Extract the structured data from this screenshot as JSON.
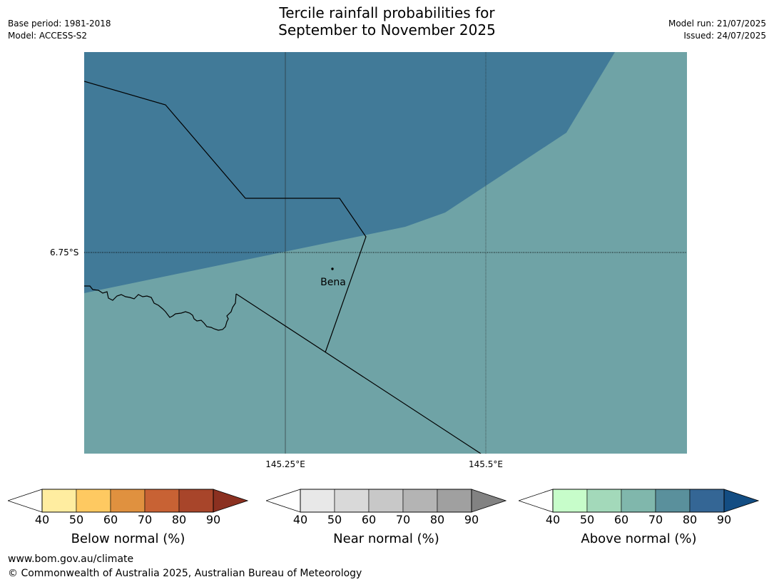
{
  "header": {
    "base_period": "Base period: 1981-2018",
    "model": "Model: ACCESS-S2",
    "title_line1": "Tercile rainfall probabilities for",
    "title_line2": "September to November 2025",
    "model_run": "Model run: 21/07/2025",
    "issued": "Issued: 24/07/2025"
  },
  "map": {
    "lat_label": "6.75°S",
    "lon_labels": [
      "145.25°E",
      "145.5°E"
    ],
    "place": "Bena",
    "colors": {
      "above_80": "#417a98",
      "above_70": "#6fa3a6",
      "coast": "#000000"
    }
  },
  "colorbars": [
    {
      "title": "Below normal (%)",
      "ticks": [
        "40",
        "50",
        "60",
        "70",
        "80",
        "90"
      ],
      "colors": [
        "#ffeda0",
        "#fec961",
        "#e0913f",
        "#c86234",
        "#a8452a"
      ],
      "extend_color": "#8b3020"
    },
    {
      "title": "Near normal (%)",
      "ticks": [
        "40",
        "50",
        "60",
        "70",
        "80",
        "90"
      ],
      "colors": [
        "#e8e8e8",
        "#d9d9d9",
        "#c8c8c8",
        "#b4b4b4",
        "#a0a0a0"
      ],
      "extend_color": "#828282"
    },
    {
      "title": "Above normal (%)",
      "ticks": [
        "40",
        "50",
        "60",
        "70",
        "80",
        "90"
      ],
      "colors": [
        "#c7fdca",
        "#a3d9ba",
        "#80b7ac",
        "#5a909c",
        "#346695"
      ],
      "extend_color": "#134d83"
    }
  ],
  "footer": {
    "url": "www.bom.gov.au/climate",
    "copyright": "© Commonwealth of Australia 2025, Australian Bureau of Meteorology"
  }
}
